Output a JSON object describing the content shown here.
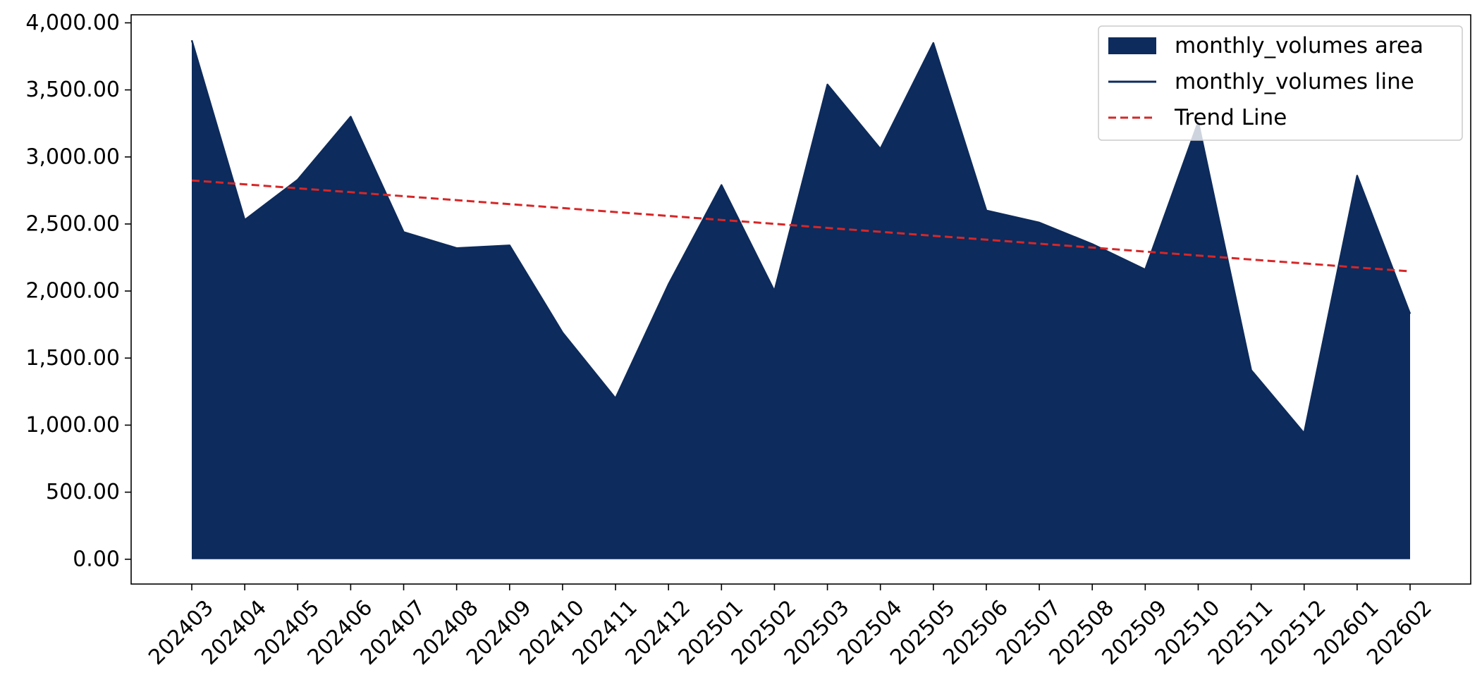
{
  "chart_data": {
    "type": "area",
    "categories": [
      "202403",
      "202404",
      "202405",
      "202406",
      "202407",
      "202408",
      "202409",
      "202410",
      "202411",
      "202412",
      "202501",
      "202502",
      "202503",
      "202504",
      "202505",
      "202506",
      "202507",
      "202508",
      "202509",
      "202510",
      "202511",
      "202512",
      "202601",
      "202602"
    ],
    "series": [
      {
        "name": "monthly_volumes area",
        "kind": "area",
        "color": "#0d2b5c",
        "values": [
          3870,
          2530,
          2830,
          3300,
          2440,
          2320,
          2340,
          1690,
          1200,
          2050,
          2790,
          2000,
          3540,
          3060,
          3850,
          2600,
          2510,
          2350,
          2160,
          3260,
          1410,
          940,
          2860,
          1830
        ]
      },
      {
        "name": "monthly_volumes line",
        "kind": "line",
        "color": "#0d2b5c",
        "values": [
          3870,
          2530,
          2830,
          3300,
          2440,
          2320,
          2340,
          1690,
          1200,
          2050,
          2790,
          2000,
          3540,
          3060,
          3850,
          2600,
          2510,
          2350,
          2160,
          3260,
          1410,
          940,
          2860,
          1830
        ]
      },
      {
        "name": "Trend Line",
        "kind": "line",
        "style": "dashed",
        "color": "#d62728",
        "values": [
          2825,
          2796,
          2766,
          2737,
          2707,
          2678,
          2648,
          2619,
          2589,
          2560,
          2530,
          2501,
          2471,
          2442,
          2412,
          2383,
          2353,
          2324,
          2294,
          2265,
          2235,
          2206,
          2176,
          2147
        ]
      }
    ],
    "yticks": [
      0,
      500,
      1000,
      1500,
      2000,
      2500,
      3000,
      3500,
      4000
    ],
    "ytick_labels": [
      "0.00",
      "500.00",
      "1,000.00",
      "1,500.00",
      "2,000.00",
      "2,500.00",
      "3,000.00",
      "3,500.00",
      "4,000.00"
    ],
    "ylim": [
      -185,
      4060
    ],
    "title": "",
    "xlabel": "",
    "ylabel": "",
    "grid": false,
    "legend_position": "top-right"
  }
}
